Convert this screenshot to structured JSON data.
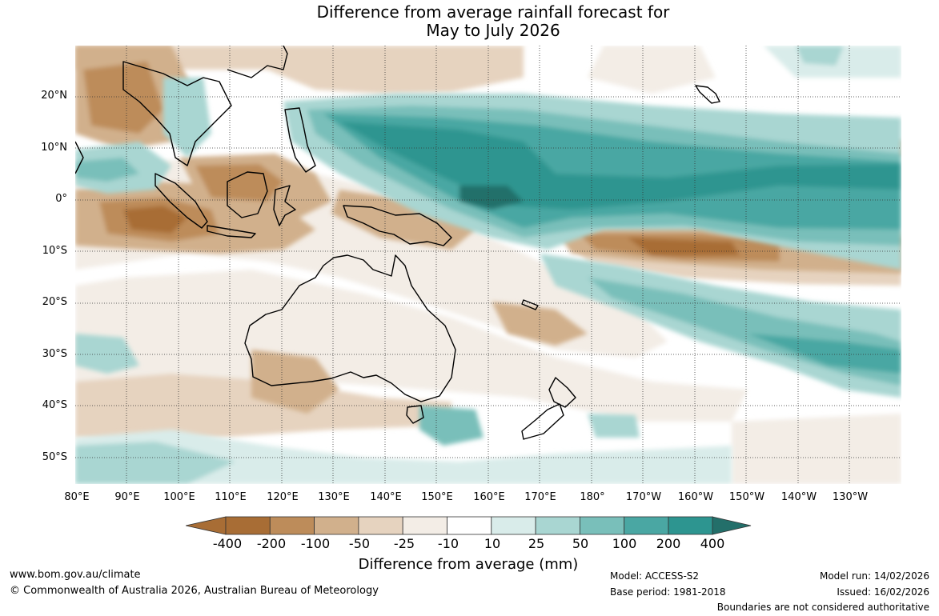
{
  "title": {
    "line1": "Difference from average rainfall forecast for",
    "line2": "May to July 2026"
  },
  "map": {
    "lat_labels": [
      "20°N",
      "10°N",
      "0°",
      "10°S",
      "20°S",
      "30°S",
      "40°S",
      "50°S"
    ],
    "lon_labels": [
      "80°E",
      "90°E",
      "100°E",
      "110°E",
      "120°E",
      "130°E",
      "140°E",
      "150°E",
      "160°E",
      "170°E",
      "180°",
      "170°W",
      "160°W",
      "150°W",
      "140°W",
      "130°W"
    ]
  },
  "colorbar": {
    "tick_labels": [
      "-400",
      "-200",
      "-100",
      "-50",
      "-25",
      "-10",
      "10",
      "25",
      "50",
      "100",
      "200",
      "400"
    ],
    "colors": [
      "#a86d35",
      "#bd8c5a",
      "#d1b08c",
      "#e6d3bf",
      "#f3ede6",
      "#ffffff",
      "#d9ecea",
      "#a9d6d2",
      "#79bfba",
      "#4aa7a3",
      "#2d9590",
      "#236f6a"
    ],
    "label": "Difference from average (mm)"
  },
  "footer": {
    "website": "www.bom.gov.au/climate",
    "copyright": "© Commonwealth of Australia 2026, Australian Bureau of Meteorology",
    "model": "Model: ACCESS-S2",
    "base_period": "Base period: 1981-2018",
    "model_run": "Model run: 14/02/2026",
    "issued": "Issued: 16/02/2026",
    "disclaimer": "Boundaries are not considered authoritative"
  }
}
